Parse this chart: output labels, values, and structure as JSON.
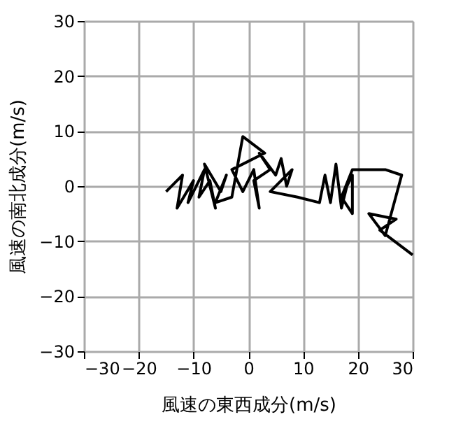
{
  "chart_data": {
    "type": "line",
    "xlabel": "風速の東西成分(m/s)",
    "ylabel": "風速の南北成分(m/s)",
    "x": [
      -15,
      -12,
      -13,
      -10,
      -11,
      -8,
      -9,
      -7,
      -6,
      -8,
      -5,
      -4,
      -6,
      -3,
      -1,
      3,
      -3,
      -1,
      1,
      2,
      1,
      4,
      2,
      5,
      6,
      7,
      8,
      4,
      9,
      13,
      14,
      15,
      16,
      17,
      18,
      19,
      19,
      17,
      19,
      25,
      28,
      25,
      22,
      27,
      24,
      30
    ],
    "series": [
      {
        "color": "#000000",
        "values": [
          -1,
          2,
          -4,
          1,
          -3,
          3,
          -2,
          1,
          -4,
          4,
          -1,
          2,
          -3,
          -2,
          9,
          6,
          3,
          -1,
          3,
          -4,
          1,
          3,
          6,
          2,
          5,
          0,
          3,
          -1,
          -2,
          -3,
          2,
          -3,
          4,
          -4,
          0,
          2,
          -5,
          -2,
          3,
          3,
          2,
          -9,
          -5,
          -6,
          -8,
          -12.5
        ]
      }
    ],
    "xlim": [
      -30,
      30
    ],
    "ylim": [
      -30,
      30
    ],
    "xticks": [
      -30,
      -20,
      -10,
      0,
      10,
      20,
      30
    ],
    "yticks": [
      -30,
      -20,
      -10,
      0,
      10,
      20,
      30
    ],
    "grid": true,
    "line_style": "solid",
    "marker": "none"
  }
}
